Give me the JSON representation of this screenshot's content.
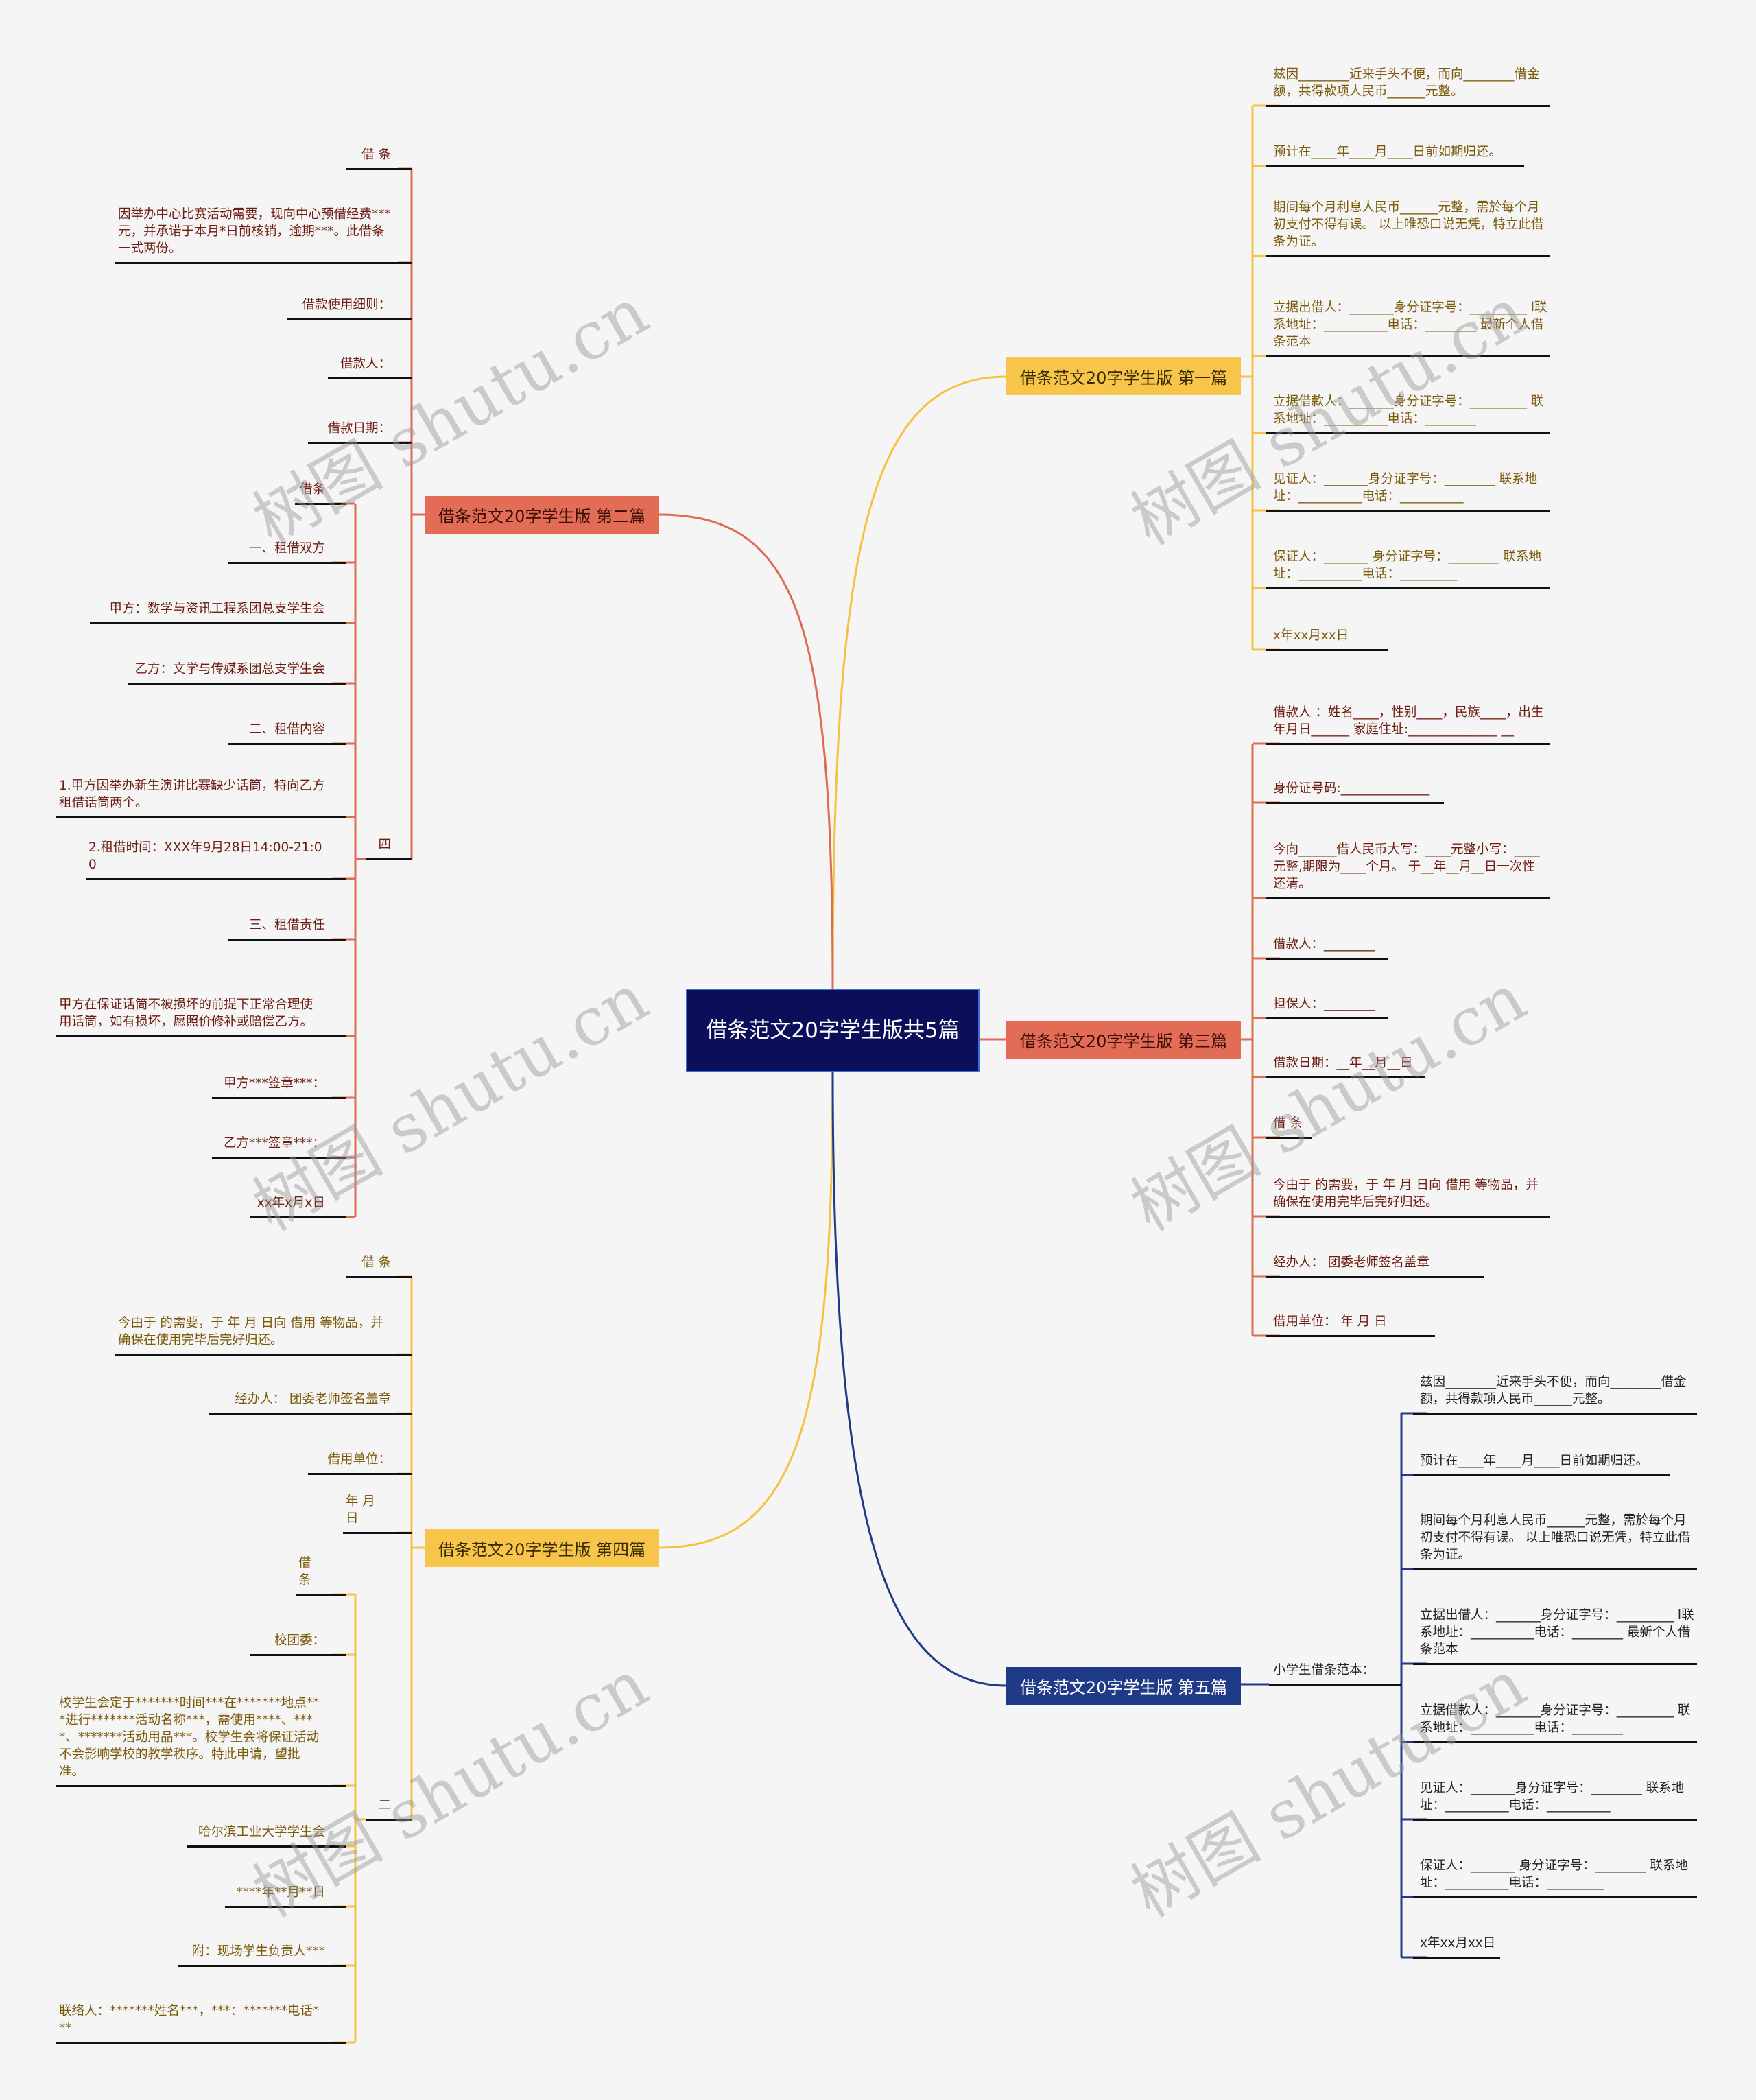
{
  "center": {
    "title": "借条范文20字学生版共5篇"
  },
  "colors": {
    "yellow": "#f5c243",
    "salmon": "#df6b55",
    "navy": "#0b0f5a",
    "blue": "#1f3a86"
  },
  "watermark": "树图 shutu.cn",
  "sections": {
    "s1": {
      "title": "借条范文20字学生版 第一篇",
      "items": [
        "兹因________近来手头不便，而向________借金额，共得款项人民币______元整。",
        "预计在____年____月____日前如期归还。",
        "期间每个月利息人民币______元整，需於每个月初支付不得有误。 以上唯恐口说无凭，特立此借条为证。",
        "立据出借人：_______身分证字号：_________ l联系地址：__________电话：________ 最新个人借条范本",
        "立据借款人：_______身分证字号：_________ 联系地址：__________电话：________",
        "见证人：_______身分证字号：________ 联系地址：__________电话：__________",
        "保证人：_______ 身分证字号：________ 联系地址：__________电话：_________",
        "x年xx月xx日"
      ]
    },
    "s2": {
      "title": "借条范文20字学生版 第二篇",
      "items": [
        "借 条",
        "因举办中心比赛活动需要，现向中心预借经费***元，并承诺于本月*日前核销，逾期***。此借条一式两份。",
        "借款使用细则：",
        "借款人：",
        "借款日期：",
        "四"
      ],
      "sub": [
        "借条",
        "一、租借双方",
        "甲方：数学与资讯工程系团总支学生会",
        "乙方：文学与传媒系团总支学生会",
        "二、租借内容",
        "1.甲方因举办新生演讲比赛缺少话筒，特向乙方租借话筒两个。",
        "2.租借时间：XXX年9月28日14:00-21:00",
        "三、租借责任",
        "甲方在保证话筒不被损坏的前提下正常合理使用话筒，如有损坏，愿照价修补或赔偿乙方。",
        "甲方***签章***：",
        "乙方***签章***：",
        "xx年x月x日"
      ]
    },
    "s3": {
      "title": "借条范文20字学生版 第三篇",
      "items": [
        "借款人 ：姓名____，性别____，民族____，出生年月日______ 家庭住址:______________ __",
        "身份证号码:______________",
        "今向______借人民币大写：____元整小写：____元整,期限为____个月。 于__年__月__日一次性还清。",
        "借款人：________",
        "担保人：________",
        "借款日期：__年__月__日",
        "借 条",
        "今由于 的需要，于 年 月 日向 借用 等物品，并确保在使用完毕后完好归还。",
        "经办人： 团委老师签名盖章",
        "借用单位：          年 月 日"
      ]
    },
    "s4": {
      "title": "借条范文20字学生版 第四篇",
      "items": [
        "借 条",
        "今由于 的需要，于 年 月 日向 借用 等物品，并确保在使用完毕后完好归还。",
        "经办人： 团委老师签名盖章",
        "借用单位：",
        "年 月 日",
        "二"
      ],
      "sub": [
        "借 条",
        "校团委：",
        "校学生会定于*******时间***在*******地点***进行*******活动名称***，需使用****、****、*******活动用品***。校学生会将保证活动不会影响学校的教学秩序。特此申请，望批准。",
        "哈尔滨工业大学学生会",
        "****年**月**日",
        "附：现场学生负责人***",
        "联络人：*******姓名***，***：*******电话***"
      ]
    },
    "s5": {
      "title": "借条范文20字学生版 第五篇",
      "label": "小学生借条范本：",
      "items": [
        "兹因________近来手头不便，而向________借金额，共得款项人民币______元整。",
        "预计在____年____月____日前如期归还。",
        "期间每个月利息人民币______元整，需於每个月初支付不得有误。 以上唯恐口说无凭，特立此借条为证。",
        "立据出借人：_______身分证字号：_________ l联系地址：__________电话：________ 最新个人借条范本",
        "立据借款人：_______身分证字号：_________ 联系地址：__________电话：________",
        "见证人：_______身分证字号：________ 联系地址：__________电话：__________",
        "保证人：_______ 身分证字号：________ 联系地址：__________电话：_________",
        "x年xx月xx日"
      ]
    }
  }
}
